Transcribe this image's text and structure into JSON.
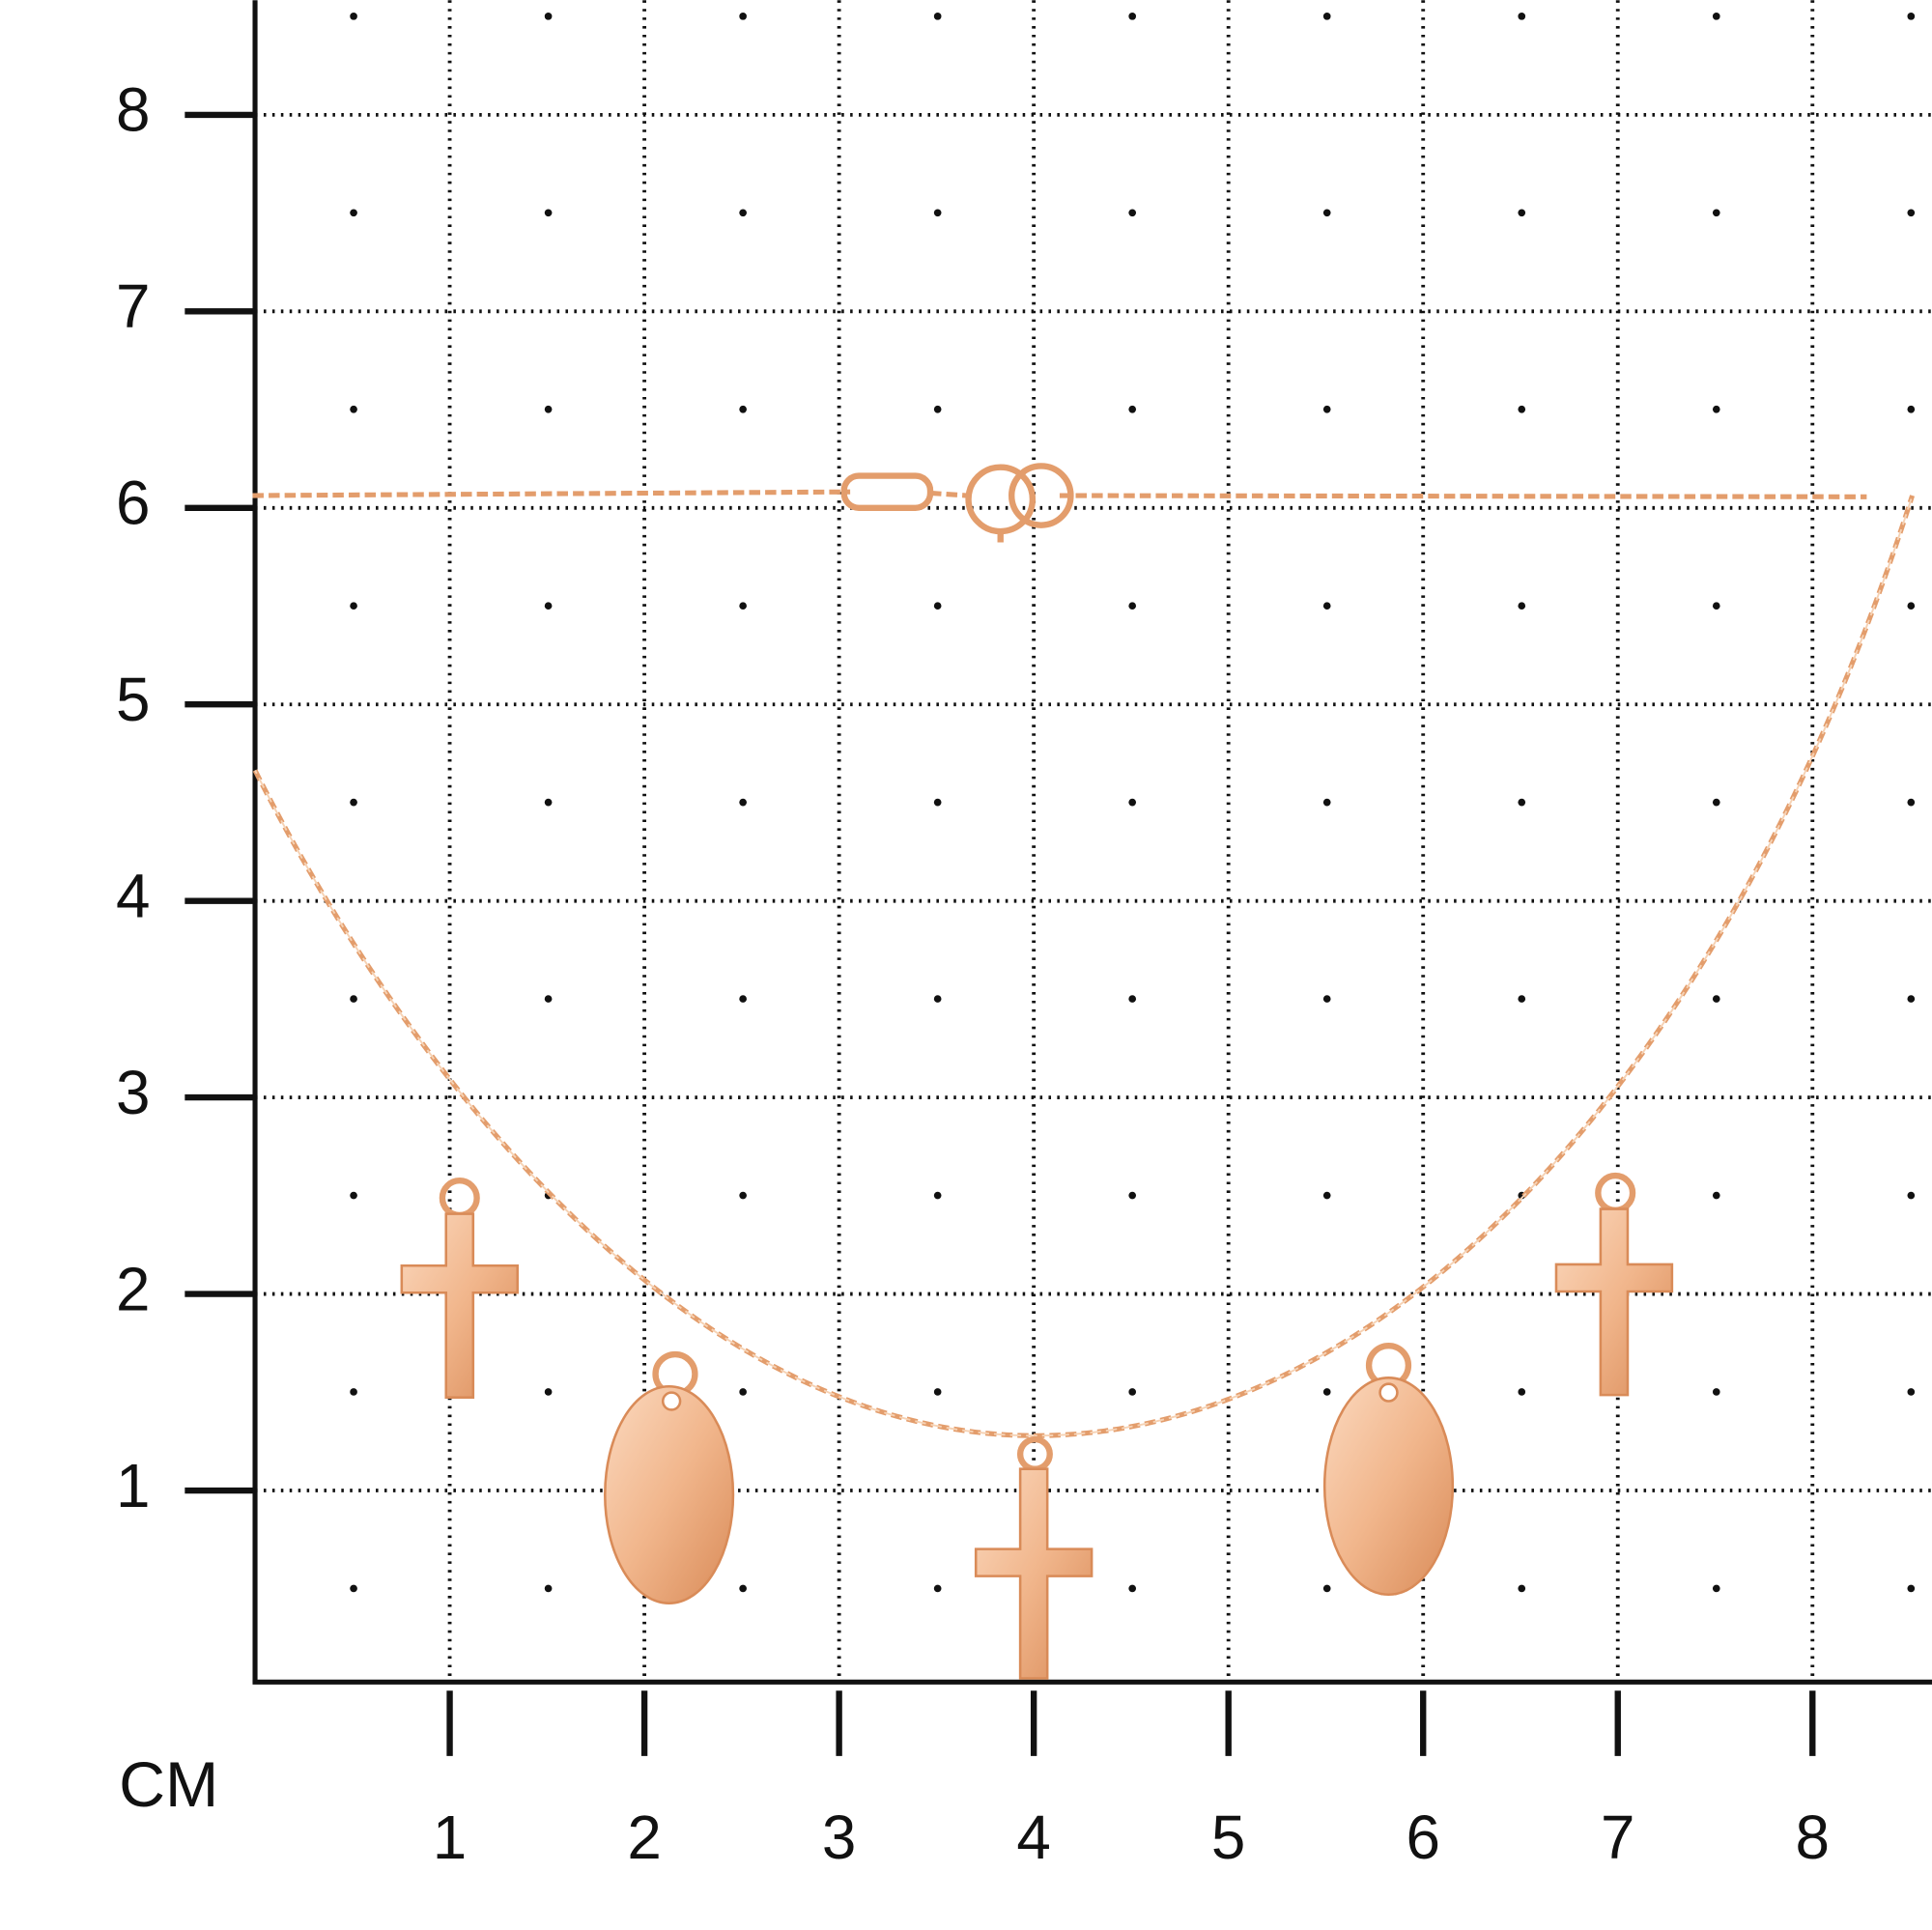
{
  "unit": "CM",
  "x_labels": [
    "1",
    "2",
    "3",
    "4",
    "5",
    "6",
    "7",
    "8"
  ],
  "y_labels": [
    "1",
    "2",
    "3",
    "4",
    "5",
    "6",
    "7",
    "8"
  ]
}
